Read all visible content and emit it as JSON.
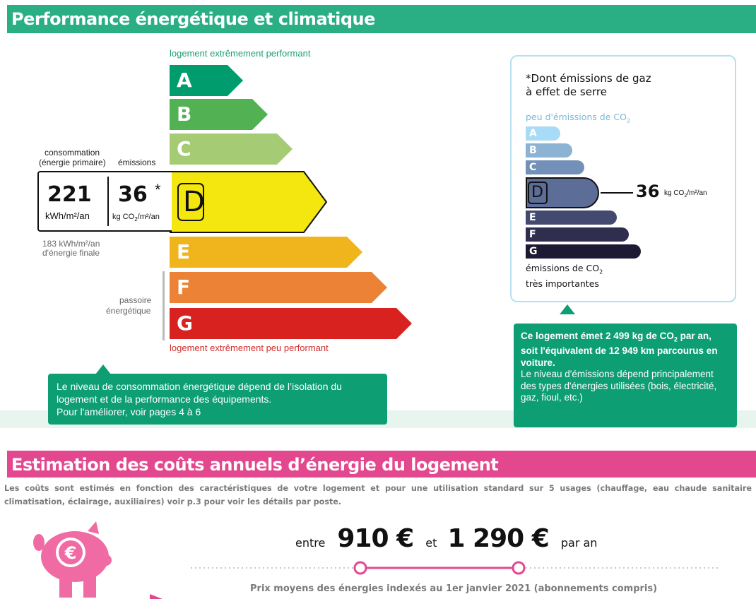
{
  "section1": {
    "title": "Performance énergétique et climatique",
    "label_top": "logement extrêmement performant",
    "label_bottom": "logement extrêmement peu performant",
    "dpe_classes": [
      "A",
      "B",
      "C",
      "D",
      "E",
      "F",
      "G"
    ],
    "current_class": "D",
    "consumption_label_1": "consommation",
    "consumption_label_2": "(énergie primaire)",
    "emissions_label": "émissions",
    "consumption_value": "221",
    "consumption_unit": "kWh/m²/an",
    "emissions_value": "36",
    "emissions_star": "*",
    "emissions_unit_prefix": "kg CO",
    "emissions_unit_sub": "2",
    "emissions_unit_suffix": "/m²/an",
    "final_energy_1": "183 kWh/m²/an",
    "final_energy_2": "d'énergie finale",
    "passoire_1": "passoire",
    "passoire_2": "énergétique",
    "callout_1": "Le niveau de consommation énergétique dépend de l’isolation du logement et de la performance des équipements.",
    "callout_2": "Pour l'améliorer, voir pages 4 à 6",
    "colors": {
      "A": "#009c6d",
      "B": "#52b153",
      "C": "#a5cc74",
      "D": "#f4e70f",
      "E": "#f0b41c",
      "F": "#eb8235",
      "G": "#d7221f"
    }
  },
  "ges": {
    "title_1": "*Dont émissions de gaz",
    "title_2": "à effet de serre",
    "low_label_prefix": "peu d'émissions de CO",
    "low_label_sub": "2",
    "high_label_1_prefix": "émissions de CO",
    "high_label_1_sub": "2",
    "high_label_2": "très importantes",
    "classes": [
      "A",
      "B",
      "C",
      "D",
      "E",
      "F",
      "G"
    ],
    "current_class": "D",
    "value": "36",
    "unit_prefix": "kg CO",
    "unit_sub": "2",
    "unit_suffix": "/m²/an",
    "colors": {
      "A": "#a8dbf5",
      "B": "#8db3d4",
      "C": "#7391b8",
      "D": "#5c6d97",
      "E": "#43496f",
      "F": "#302e4f",
      "G": "#1f1a34"
    },
    "callout_bold_1": "Ce logement émet 2 499 kg de CO",
    "callout_bold_sub": "2",
    "callout_bold_2": " par an, soit l'équivalent de 12 949 km parcourus en voiture.",
    "callout_normal": "Le niveau d'émissions dépend principalement des types d'énergies utilisées (bois, électricité, gaz, fioul, etc.)"
  },
  "section2": {
    "title": "Estimation des coûts annuels d’énergie du logement",
    "intro": "Les coûts sont estimés en fonction des caractéristiques de votre logement et pour une utilisation standard sur 5 usages (chauffage, eau chaude sanitaire climatisation, éclairage, auxiliaires) voir p.3 pour voir les détails par poste.",
    "between": "entre",
    "min_cost": "910 €",
    "and": "et",
    "max_cost": "1 290 €",
    "per_year": "par an",
    "prices_note": "Prix moyens des énergies indexés au  1er janvier 2021 (abonnements compris)",
    "accent": "#e3488f"
  }
}
